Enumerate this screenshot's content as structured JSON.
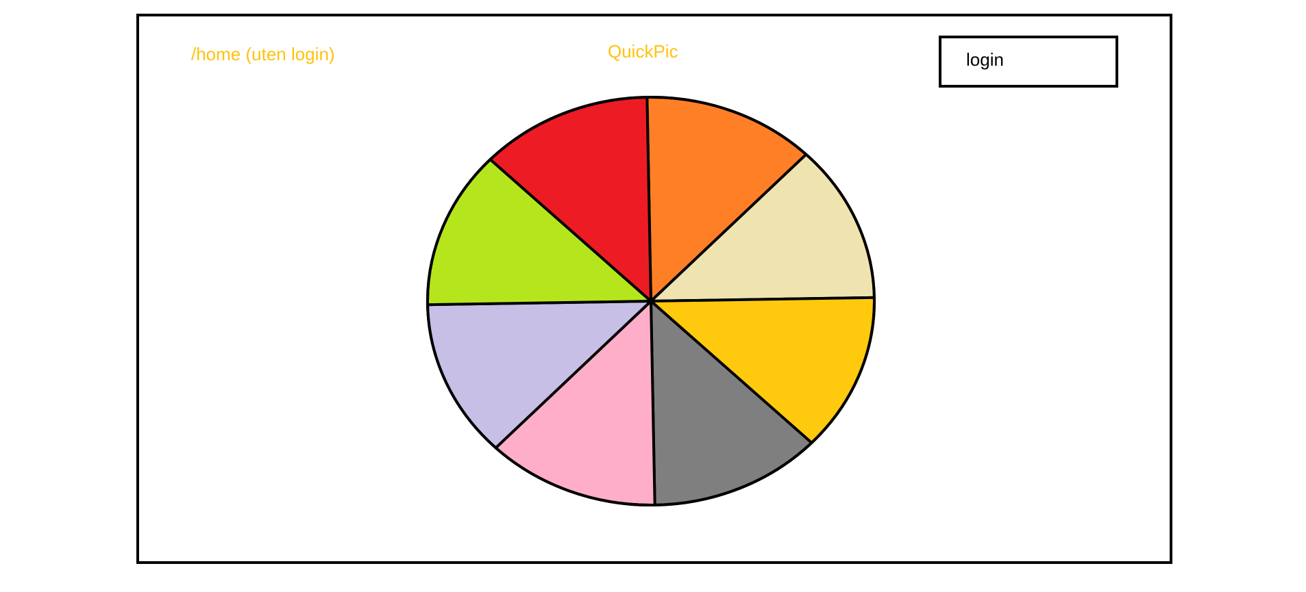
{
  "header": {
    "route_label": "/home (uten login)",
    "app_title": "QuickPic",
    "login_label": "login"
  },
  "theme": {
    "accent_text": "#ffc20e",
    "border": "#000000"
  },
  "wheel": {
    "segments": [
      {
        "name": "wheel-segment-orange",
        "color": "#ff7f27"
      },
      {
        "name": "wheel-segment-beige",
        "color": "#efe4b0"
      },
      {
        "name": "wheel-segment-yellow",
        "color": "#ffc90e"
      },
      {
        "name": "wheel-segment-gray",
        "color": "#7f7f7f"
      },
      {
        "name": "wheel-segment-pink",
        "color": "#ffaec9"
      },
      {
        "name": "wheel-segment-lavender",
        "color": "#c8bfe7"
      },
      {
        "name": "wheel-segment-lime",
        "color": "#b5e61d"
      },
      {
        "name": "wheel-segment-red",
        "color": "#ed1c24"
      }
    ]
  }
}
